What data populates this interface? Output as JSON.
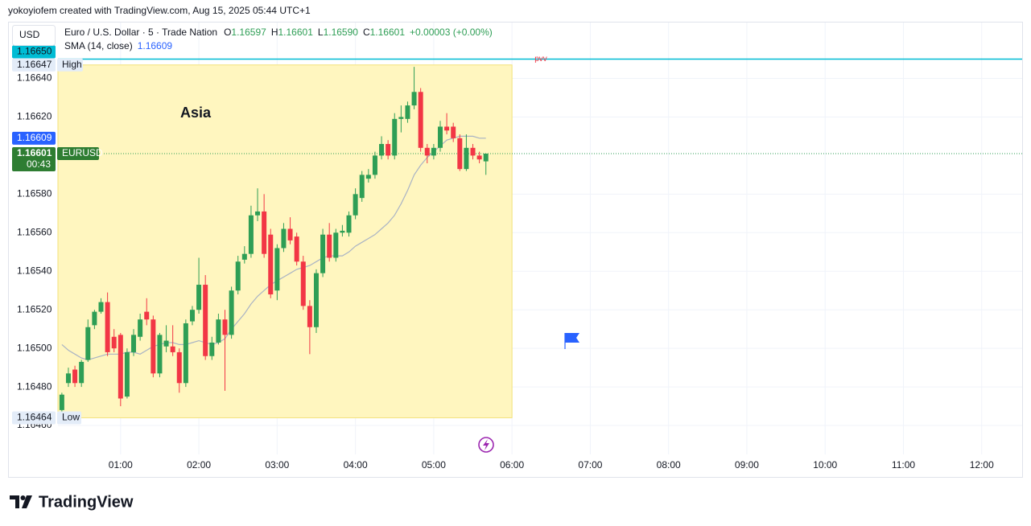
{
  "attribution": "yokoyiofem created with TradingView.com, Aug 15, 2025 05:44 UTC+1",
  "logo": "TradingView",
  "chart_data": {
    "type": "candlestick",
    "currency": "USD",
    "symbol": "Euro / U.S. Dollar · 5 · Trade Nation",
    "ticker": "EURUSD",
    "countdown": "00:43",
    "change": "+0.00003 (+0.00%)",
    "quote": {
      "labels": [
        "O",
        "H",
        "L",
        "C"
      ],
      "values": [
        1.16597,
        1.16601,
        1.1659,
        1.16601
      ],
      "value_labels": [
        "1.16597",
        "1.16601",
        "1.16590",
        "1.16601"
      ]
    },
    "up_color": "#2e9e55",
    "down_color": "#f23645",
    "x": [
      15,
      20,
      25,
      30,
      35,
      40,
      45,
      50,
      55,
      60,
      65,
      70,
      75,
      80,
      85,
      90,
      95,
      100,
      105,
      110,
      115,
      120,
      125,
      130,
      135,
      140,
      145,
      150,
      155,
      160,
      165,
      170,
      175,
      180,
      185,
      190,
      195,
      200,
      205,
      210,
      215,
      220,
      225,
      230,
      235,
      240,
      245,
      250,
      255,
      260,
      265,
      270,
      275,
      280,
      285,
      290,
      295,
      300,
      305,
      310,
      315,
      320,
      325,
      330,
      335,
      340
    ],
    "open": [
      1.16468,
      1.16482,
      1.16489,
      1.16482,
      1.16494,
      1.16512,
      1.16519,
      1.16524,
      1.16506,
      1.16507,
      1.16475,
      1.16498,
      1.16506,
      1.16519,
      1.16515,
      1.16487,
      1.16501,
      1.16501,
      1.16498,
      1.16482,
      1.16514,
      1.1652,
      1.16533,
      1.16496,
      1.16503,
      1.16515,
      1.16507,
      1.1653,
      1.16546,
      1.16549,
      1.16569,
      1.16571,
      1.16559,
      1.1653,
      1.16552,
      1.16562,
      1.16558,
      1.16545,
      1.16522,
      1.16511,
      1.16539,
      1.16559,
      1.16547,
      1.1656,
      1.1656,
      1.16569,
      1.16578,
      1.16588,
      1.1659,
      1.166,
      1.16606,
      1.166,
      1.16619,
      1.16619,
      1.16626,
      1.16633,
      1.16604,
      1.166,
      1.16604,
      1.16615,
      1.16615,
      1.16609,
      1.16593,
      1.16604,
      1.166,
      1.16597
    ],
    "high": [
      1.16477,
      1.1649,
      1.16491,
      1.16494,
      1.16515,
      1.1652,
      1.16526,
      1.16529,
      1.1651,
      1.16508,
      1.165,
      1.1651,
      1.16518,
      1.16526,
      1.16517,
      1.16508,
      1.16512,
      1.16512,
      1.165,
      1.16515,
      1.16522,
      1.16547,
      1.16538,
      1.16506,
      1.16518,
      1.1652,
      1.16532,
      1.16548,
      1.16553,
      1.16574,
      1.16583,
      1.1658,
      1.16562,
      1.16554,
      1.16565,
      1.16568,
      1.1656,
      1.16548,
      1.16525,
      1.16541,
      1.16562,
      1.16565,
      1.16562,
      1.16564,
      1.16571,
      1.16583,
      1.16592,
      1.16593,
      1.16602,
      1.1661,
      1.16608,
      1.16622,
      1.16626,
      1.16628,
      1.16646,
      1.16635,
      1.16606,
      1.16606,
      1.16618,
      1.16622,
      1.16617,
      1.16611,
      1.16611,
      1.16606,
      1.16602,
      1.16601
    ],
    "low": [
      1.16467,
      1.1648,
      1.1648,
      1.1648,
      1.16493,
      1.1651,
      1.16518,
      1.16496,
      1.16498,
      1.1647,
      1.16474,
      1.16496,
      1.16504,
      1.16512,
      1.16485,
      1.16485,
      1.16498,
      1.16496,
      1.16477,
      1.1648,
      1.16512,
      1.16518,
      1.16494,
      1.16494,
      1.16502,
      1.16478,
      1.16505,
      1.16528,
      1.16544,
      1.16547,
      1.16566,
      1.16547,
      1.16526,
      1.16525,
      1.1655,
      1.16554,
      1.16543,
      1.1652,
      1.16497,
      1.16508,
      1.16537,
      1.16545,
      1.16545,
      1.16558,
      1.16558,
      1.16567,
      1.16576,
      1.16586,
      1.16588,
      1.16598,
      1.16598,
      1.16598,
      1.16612,
      1.16617,
      1.16624,
      1.16602,
      1.16596,
      1.16598,
      1.16602,
      1.16611,
      1.16607,
      1.16592,
      1.16592,
      1.16598,
      1.16596,
      1.1659
    ],
    "close": [
      1.16476,
      1.16487,
      1.16482,
      1.16493,
      1.16511,
      1.16519,
      1.16524,
      1.16498,
      1.165,
      1.16474,
      1.16498,
      1.16507,
      1.16515,
      1.16515,
      1.16487,
      1.16507,
      1.16504,
      1.16498,
      1.16482,
      1.16513,
      1.1652,
      1.16533,
      1.16496,
      1.16503,
      1.16515,
      1.16507,
      1.1653,
      1.16545,
      1.16549,
      1.16569,
      1.16571,
      1.16549,
      1.16528,
      1.16552,
      1.16562,
      1.16556,
      1.16545,
      1.16522,
      1.16511,
      1.16539,
      1.16559,
      1.16547,
      1.1656,
      1.16561,
      1.16569,
      1.1658,
      1.1659,
      1.1659,
      1.166,
      1.16606,
      1.166,
      1.16619,
      1.1662,
      1.16626,
      1.16633,
      1.16604,
      1.166,
      1.16604,
      1.16615,
      1.16613,
      1.16609,
      1.16593,
      1.16604,
      1.166,
      1.16598,
      1.16601
    ],
    "sma": {
      "name": "SMA (14, close)",
      "color": "#a9b3c4",
      "label_color": "#2962ff",
      "last": 1.16609,
      "values": [
        1.16502,
        1.16499,
        1.16497,
        1.16495,
        1.16494,
        1.16495,
        1.16496,
        1.16497,
        1.16497,
        1.16497,
        1.16498,
        1.16498,
        1.16497,
        1.16499,
        1.16501,
        1.16502,
        1.16503,
        1.16503,
        1.16502,
        1.16502,
        1.16503,
        1.16504,
        1.16503,
        1.16502,
        1.16503,
        1.16505,
        1.1651,
        1.16514,
        1.16518,
        1.16523,
        1.16527,
        1.1653,
        1.16533,
        1.16535,
        1.16537,
        1.16539,
        1.16541,
        1.16542,
        1.16543,
        1.16545,
        1.16547,
        1.16548,
        1.16548,
        1.16548,
        1.1655,
        1.16553,
        1.16555,
        1.16557,
        1.16559,
        1.16562,
        1.16565,
        1.16569,
        1.16575,
        1.16582,
        1.1659,
        1.16595,
        1.16599,
        1.16602,
        1.16605,
        1.16608,
        1.16609,
        1.1661,
        1.1661,
        1.1661,
        1.16609,
        1.16609
      ]
    },
    "session": {
      "label": "Asia",
      "high": 1.16647,
      "low": 1.16464,
      "high_label": "High",
      "low_label": "Low",
      "end": 360,
      "color": "#fff6bf"
    },
    "level": {
      "label": "pvv",
      "value": 1.1665,
      "value_label": "1.16650",
      "color": "#00bcd4",
      "label_color": "#f23645"
    },
    "xlim": [
      12,
      751
    ],
    "xticks": [
      {
        "value": 60,
        "label": "01:00"
      },
      {
        "value": 120,
        "label": "02:00"
      },
      {
        "value": 180,
        "label": "03:00"
      },
      {
        "value": 240,
        "label": "04:00"
      },
      {
        "value": 300,
        "label": "05:00"
      },
      {
        "value": 360,
        "label": "06:00"
      },
      {
        "value": 420,
        "label": "07:00"
      },
      {
        "value": 480,
        "label": "08:00"
      },
      {
        "value": 540,
        "label": "09:00"
      },
      {
        "value": 600,
        "label": "10:00"
      },
      {
        "value": 660,
        "label": "11:00"
      },
      {
        "value": 720,
        "label": "12:00"
      }
    ],
    "ylim": [
      1.16445,
      1.16669
    ],
    "yticks": [
      {
        "value": 1.1646,
        "label": "1.16460"
      },
      {
        "value": 1.1648,
        "label": "1.16480"
      },
      {
        "value": 1.165,
        "label": "1.16500"
      },
      {
        "value": 1.1652,
        "label": "1.16520"
      },
      {
        "value": 1.1654,
        "label": "1.16540"
      },
      {
        "value": 1.1656,
        "label": "1.16560"
      },
      {
        "value": 1.1658,
        "label": "1.16580"
      },
      {
        "value": 1.1662,
        "label": "1.16620"
      },
      {
        "value": 1.1664,
        "label": "1.16640"
      }
    ],
    "grid": true
  }
}
